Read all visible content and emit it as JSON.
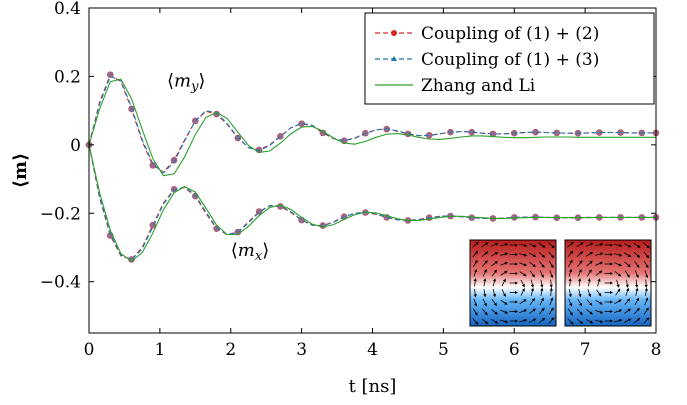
{
  "chart_data": {
    "type": "line",
    "xlabel": "t [ns]",
    "ylabel": "⟨m⟩",
    "xlim": [
      0,
      8
    ],
    "ylim": [
      -0.55,
      0.4
    ],
    "xticks": [
      0,
      1,
      2,
      3,
      4,
      5,
      6,
      7,
      8
    ],
    "yticks": [
      -0.4,
      -0.2,
      0,
      0.2,
      0.4
    ],
    "ytick_labels": [
      "−0.4",
      "−0.2",
      "0",
      "0.2",
      "0.4"
    ],
    "legend_position": "top-right",
    "annotations": [
      {
        "text": "⟨m_y⟩",
        "x": 1.1,
        "y": 0.17
      },
      {
        "text": "⟨m_x⟩",
        "x": 2.0,
        "y": -0.325
      }
    ],
    "series": [
      {
        "name": "Coupling of (1) + (2)",
        "color": "#d62728",
        "style": "dashed",
        "marker": "circle",
        "curves": [
          {
            "component": "m_y",
            "x": [
              0,
              0.15,
              0.3,
              0.45,
              0.6,
              0.75,
              0.9,
              1.05,
              1.2,
              1.35,
              1.5,
              1.65,
              1.8,
              1.95,
              2.1,
              2.25,
              2.4,
              2.55,
              2.7,
              2.85,
              3.0,
              3.15,
              3.3,
              3.45,
              3.6,
              3.75,
              3.9,
              4.05,
              4.2,
              4.35,
              4.5,
              4.65,
              4.8,
              4.95,
              5.1,
              5.25,
              5.4,
              5.55,
              5.7,
              5.85,
              6.0,
              6.15,
              6.3,
              6.45,
              6.6,
              6.75,
              6.9,
              7.05,
              7.2,
              7.35,
              7.5,
              7.65,
              7.8,
              7.95,
              8.0
            ],
            "y": [
              0,
              0.125,
              0.205,
              0.185,
              0.105,
              0.01,
              -0.06,
              -0.08,
              -0.045,
              0.015,
              0.07,
              0.098,
              0.09,
              0.06,
              0.02,
              -0.008,
              -0.015,
              0.0,
              0.025,
              0.05,
              0.062,
              0.055,
              0.035,
              0.018,
              0.012,
              0.02,
              0.034,
              0.044,
              0.046,
              0.04,
              0.032,
              0.027,
              0.028,
              0.032,
              0.037,
              0.039,
              0.037,
              0.034,
              0.032,
              0.032,
              0.034,
              0.036,
              0.037,
              0.036,
              0.035,
              0.034,
              0.034,
              0.035,
              0.036,
              0.036,
              0.036,
              0.035,
              0.035,
              0.035,
              0.035
            ]
          },
          {
            "component": "m_x",
            "x": [
              0,
              0.15,
              0.3,
              0.45,
              0.6,
              0.75,
              0.9,
              1.05,
              1.2,
              1.35,
              1.5,
              1.65,
              1.8,
              1.95,
              2.1,
              2.25,
              2.4,
              2.55,
              2.7,
              2.85,
              3.0,
              3.15,
              3.3,
              3.45,
              3.6,
              3.75,
              3.9,
              4.05,
              4.2,
              4.35,
              4.5,
              4.65,
              4.8,
              4.95,
              5.1,
              5.25,
              5.4,
              5.55,
              5.7,
              5.85,
              6.0,
              6.15,
              6.3,
              6.45,
              6.6,
              6.75,
              6.9,
              7.05,
              7.2,
              7.35,
              7.5,
              7.65,
              7.8,
              7.95,
              8.0
            ],
            "y": [
              0,
              -0.155,
              -0.265,
              -0.325,
              -0.335,
              -0.3,
              -0.235,
              -0.17,
              -0.13,
              -0.125,
              -0.15,
              -0.2,
              -0.245,
              -0.262,
              -0.255,
              -0.225,
              -0.195,
              -0.178,
              -0.18,
              -0.198,
              -0.22,
              -0.235,
              -0.236,
              -0.225,
              -0.21,
              -0.2,
              -0.198,
              -0.203,
              -0.212,
              -0.219,
              -0.221,
              -0.218,
              -0.213,
              -0.209,
              -0.208,
              -0.21,
              -0.213,
              -0.215,
              -0.215,
              -0.214,
              -0.212,
              -0.211,
              -0.211,
              -0.212,
              -0.213,
              -0.213,
              -0.213,
              -0.212,
              -0.212,
              -0.212,
              -0.212,
              -0.212,
              -0.212,
              -0.212,
              -0.212
            ]
          }
        ]
      },
      {
        "name": "Coupling of (1) + (3)",
        "color": "#1f77b4",
        "style": "dashed",
        "marker": "triangle",
        "curves": [
          {
            "component": "m_y",
            "x": [
              0,
              0.15,
              0.3,
              0.45,
              0.6,
              0.75,
              0.9,
              1.05,
              1.2,
              1.35,
              1.5,
              1.65,
              1.8,
              1.95,
              2.1,
              2.25,
              2.4,
              2.55,
              2.7,
              2.85,
              3.0,
              3.15,
              3.3,
              3.45,
              3.6,
              3.75,
              3.9,
              4.05,
              4.2,
              4.35,
              4.5,
              4.65,
              4.8,
              4.95,
              5.1,
              5.25,
              5.4,
              5.55,
              5.7,
              5.85,
              6.0,
              6.15,
              6.3,
              6.45,
              6.6,
              6.75,
              6.9,
              7.05,
              7.2,
              7.35,
              7.5,
              7.65,
              7.8,
              7.95,
              8.0
            ],
            "y": [
              0,
              0.12,
              0.2,
              0.188,
              0.11,
              0.015,
              -0.055,
              -0.082,
              -0.05,
              0.012,
              0.07,
              0.1,
              0.093,
              0.062,
              0.022,
              -0.008,
              -0.017,
              -0.002,
              0.024,
              0.05,
              0.063,
              0.057,
              0.037,
              0.019,
              0.012,
              0.019,
              0.033,
              0.044,
              0.047,
              0.041,
              0.033,
              0.027,
              0.027,
              0.032,
              0.037,
              0.039,
              0.038,
              0.034,
              0.032,
              0.032,
              0.034,
              0.036,
              0.037,
              0.036,
              0.035,
              0.034,
              0.034,
              0.035,
              0.036,
              0.036,
              0.036,
              0.035,
              0.035,
              0.035,
              0.035
            ]
          },
          {
            "component": "m_x",
            "x": [
              0,
              0.15,
              0.3,
              0.45,
              0.6,
              0.75,
              0.9,
              1.05,
              1.2,
              1.35,
              1.5,
              1.65,
              1.8,
              1.95,
              2.1,
              2.25,
              2.4,
              2.55,
              2.7,
              2.85,
              3.0,
              3.15,
              3.3,
              3.45,
              3.6,
              3.75,
              3.9,
              4.05,
              4.2,
              4.35,
              4.5,
              4.65,
              4.8,
              4.95,
              5.1,
              5.25,
              5.4,
              5.55,
              5.7,
              5.85,
              6.0,
              6.15,
              6.3,
              6.45,
              6.6,
              6.75,
              6.9,
              7.05,
              7.2,
              7.35,
              7.5,
              7.65,
              7.8,
              7.95,
              8.0
            ],
            "y": [
              0,
              -0.15,
              -0.26,
              -0.322,
              -0.336,
              -0.304,
              -0.24,
              -0.173,
              -0.132,
              -0.123,
              -0.147,
              -0.196,
              -0.243,
              -0.262,
              -0.256,
              -0.228,
              -0.197,
              -0.178,
              -0.178,
              -0.196,
              -0.219,
              -0.235,
              -0.237,
              -0.226,
              -0.211,
              -0.2,
              -0.197,
              -0.202,
              -0.211,
              -0.219,
              -0.221,
              -0.219,
              -0.214,
              -0.209,
              -0.208,
              -0.21,
              -0.213,
              -0.215,
              -0.215,
              -0.214,
              -0.212,
              -0.211,
              -0.211,
              -0.212,
              -0.213,
              -0.213,
              -0.213,
              -0.212,
              -0.212,
              -0.212,
              -0.212,
              -0.212,
              -0.212,
              -0.212,
              -0.212
            ]
          }
        ]
      },
      {
        "name": "Zhang and Li",
        "color": "#2ca02c",
        "style": "solid",
        "marker": "none",
        "curves": [
          {
            "component": "m_y",
            "x": [
              0,
              0.15,
              0.3,
              0.45,
              0.6,
              0.75,
              0.9,
              1.05,
              1.2,
              1.35,
              1.5,
              1.65,
              1.8,
              1.95,
              2.1,
              2.25,
              2.4,
              2.55,
              2.7,
              2.85,
              3.0,
              3.15,
              3.3,
              3.45,
              3.6,
              3.75,
              3.9,
              4.05,
              4.2,
              4.35,
              4.5,
              4.65,
              4.8,
              4.95,
              5.1,
              5.25,
              5.4,
              5.55,
              5.7,
              5.85,
              6.0,
              6.15,
              6.3,
              6.45,
              6.6,
              6.75,
              6.9,
              7.05,
              7.2,
              7.35,
              7.5,
              7.65,
              7.8,
              7.95,
              8.0
            ],
            "y": [
              0,
              0.105,
              0.185,
              0.192,
              0.135,
              0.045,
              -0.04,
              -0.09,
              -0.085,
              -0.035,
              0.03,
              0.08,
              0.095,
              0.077,
              0.037,
              -0.002,
              -0.022,
              -0.018,
              0.005,
              0.033,
              0.052,
              0.054,
              0.04,
              0.02,
              0.005,
              0.002,
              0.01,
              0.022,
              0.031,
              0.033,
              0.029,
              0.022,
              0.017,
              0.016,
              0.019,
              0.023,
              0.026,
              0.026,
              0.024,
              0.022,
              0.021,
              0.021,
              0.022,
              0.023,
              0.023,
              0.023,
              0.022,
              0.022,
              0.022,
              0.022,
              0.022,
              0.022,
              0.022,
              0.022,
              0.022
            ]
          },
          {
            "component": "m_x",
            "x": [
              0,
              0.15,
              0.3,
              0.45,
              0.6,
              0.75,
              0.9,
              1.05,
              1.2,
              1.35,
              1.5,
              1.65,
              1.8,
              1.95,
              2.1,
              2.25,
              2.4,
              2.55,
              2.7,
              2.85,
              3.0,
              3.15,
              3.3,
              3.45,
              3.6,
              3.75,
              3.9,
              4.05,
              4.2,
              4.35,
              4.5,
              4.65,
              4.8,
              4.95,
              5.1,
              5.25,
              5.4,
              5.55,
              5.7,
              5.85,
              6.0,
              6.15,
              6.3,
              6.45,
              6.6,
              6.75,
              6.9,
              7.05,
              7.2,
              7.35,
              7.5,
              7.65,
              7.8,
              7.95,
              8.0
            ],
            "y": [
              0,
              -0.14,
              -0.25,
              -0.318,
              -0.34,
              -0.315,
              -0.258,
              -0.19,
              -0.14,
              -0.122,
              -0.138,
              -0.185,
              -0.235,
              -0.262,
              -0.262,
              -0.238,
              -0.207,
              -0.183,
              -0.176,
              -0.189,
              -0.212,
              -0.232,
              -0.24,
              -0.233,
              -0.218,
              -0.204,
              -0.197,
              -0.199,
              -0.207,
              -0.216,
              -0.221,
              -0.221,
              -0.217,
              -0.212,
              -0.209,
              -0.209,
              -0.211,
              -0.213,
              -0.215,
              -0.215,
              -0.214,
              -0.213,
              -0.212,
              -0.212,
              -0.212,
              -0.213,
              -0.213,
              -0.213,
              -0.212,
              -0.212,
              -0.212,
              -0.212,
              -0.212,
              -0.212,
              -0.212
            ]
          }
        ]
      }
    ],
    "insets": [
      {
        "name": "Coupling of (1) + (2)",
        "top_color": "#c62828",
        "bottom_color": "#1e6fb4",
        "center_color": "#ffffff",
        "boundary_shape": "wavy-left-low"
      },
      {
        "name": "Coupling of (1) + (3)",
        "top_color": "#c62828",
        "bottom_color": "#1e6fb4",
        "center_color": "#ffffff",
        "boundary_shape": "wavy-right-low"
      }
    ]
  }
}
